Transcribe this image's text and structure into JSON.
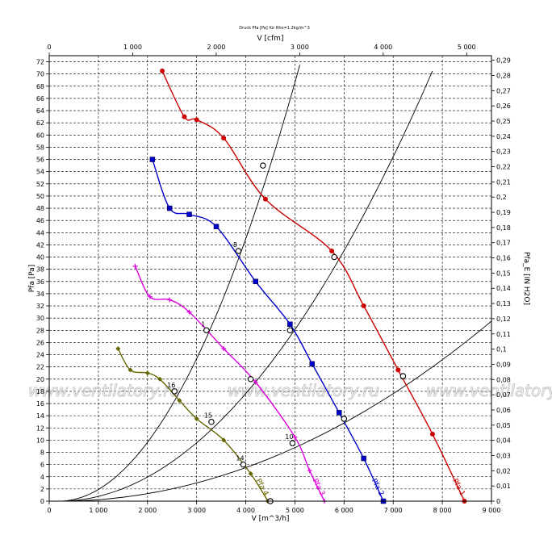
{
  "chart_data": {
    "type": "line",
    "title": "Druck Pfa [Pa] für Rho=1.2kg/m^3",
    "xlabel": "V [m^3/h]",
    "ylabel": "Pfa [Pa]",
    "x2label": "V [cfm]",
    "y2label": "Pfa_E [IN H2O]",
    "xlim": [
      0,
      9000
    ],
    "ylim": [
      0,
      73
    ],
    "x2lim": [
      0,
      5297
    ],
    "y2lim": [
      0,
      0.293
    ],
    "grid": true,
    "x_ticks": [
      "0",
      "1 000",
      "2 000",
      "3 000",
      "4 000",
      "5 000",
      "6 000",
      "7 000",
      "8 000",
      "9 000"
    ],
    "x2_ticks": [
      "0",
      "1 000",
      "2 000",
      "3 000",
      "4 000",
      "5 000"
    ],
    "y_ticks": [
      "0",
      "2",
      "4",
      "6",
      "8",
      "10",
      "12",
      "14",
      "16",
      "18",
      "20",
      "22",
      "24",
      "26",
      "28",
      "30",
      "32",
      "34",
      "36",
      "38",
      "40",
      "42",
      "44",
      "46",
      "48",
      "50",
      "52",
      "54",
      "56",
      "58",
      "60",
      "62",
      "64",
      "66",
      "68",
      "70",
      "72"
    ],
    "y2_ticks": [
      "0",
      "0,01",
      "0,02",
      "0,03",
      "0,04",
      "0,05",
      "0,06",
      "0,07",
      "0,08",
      "0,09",
      "0,1",
      "0,11",
      "0,12",
      "0,13",
      "0,14",
      "0,15",
      "0,16",
      "0,17",
      "0,18",
      "0,19",
      "0,2",
      "0,21",
      "0,22",
      "0,23",
      "0,24",
      "0,25",
      "0,26",
      "0,27",
      "0,28",
      "0,29"
    ],
    "series": [
      {
        "name": "Pfa 1",
        "color": "#cc0000",
        "marker": "circle",
        "points": [
          [
            2300,
            70.5
          ],
          [
            2750,
            63
          ],
          [
            3000,
            62.5
          ],
          [
            3550,
            59.5
          ],
          [
            4400,
            49.5
          ],
          [
            5750,
            41
          ],
          [
            6400,
            32
          ],
          [
            7100,
            21.5
          ],
          [
            7800,
            11
          ],
          [
            8450,
            0
          ]
        ]
      },
      {
        "name": "Pfa 2",
        "color": "#0000cc",
        "marker": "square",
        "points": [
          [
            2100,
            56
          ],
          [
            2450,
            48
          ],
          [
            2850,
            47
          ],
          [
            3400,
            45
          ],
          [
            4200,
            36
          ],
          [
            4900,
            29
          ],
          [
            5350,
            22.5
          ],
          [
            5900,
            14.5
          ],
          [
            6400,
            7
          ],
          [
            6800,
            0
          ]
        ]
      },
      {
        "name": "Pfa 3",
        "color": "#dd00dd",
        "marker": "plus",
        "points": [
          [
            1750,
            38.5
          ],
          [
            2050,
            33.5
          ],
          [
            2450,
            33
          ],
          [
            2850,
            31
          ],
          [
            3550,
            25
          ],
          [
            4200,
            19.5
          ],
          [
            5000,
            10.5
          ],
          [
            5300,
            5
          ],
          [
            5600,
            0
          ]
        ]
      },
      {
        "name": "Pfa 4",
        "color": "#666600",
        "marker": "diamond",
        "points": [
          [
            1400,
            25
          ],
          [
            1650,
            21.5
          ],
          [
            2000,
            21
          ],
          [
            2250,
            20
          ],
          [
            2650,
            16.5
          ],
          [
            3000,
            13.5
          ],
          [
            3550,
            10
          ],
          [
            4100,
            4.5
          ],
          [
            4450,
            0
          ]
        ]
      }
    ],
    "system_curves": [
      {
        "label": "",
        "points": [
          [
            200,
            0
          ],
          [
            5100,
            71.5
          ]
        ]
      },
      {
        "label": "",
        "points": [
          [
            200,
            0
          ],
          [
            7800,
            70.5
          ]
        ]
      },
      {
        "label": "",
        "points": [
          [
            200,
            0
          ],
          [
            9000,
            29.5
          ]
        ]
      }
    ],
    "operating_points": [
      {
        "label": "",
        "x": 4350,
        "y": 55
      },
      {
        "label": "",
        "x": 5800,
        "y": 40
      },
      {
        "label": "",
        "x": 7200,
        "y": 20.5
      },
      {
        "label": "8",
        "x": 3850,
        "y": 41
      },
      {
        "label": "",
        "x": 4900,
        "y": 28
      },
      {
        "label": "",
        "x": 6000,
        "y": 13.5
      },
      {
        "label": "1",
        "x": 3200,
        "y": 28
      },
      {
        "label": "",
        "x": 4100,
        "y": 20
      },
      {
        "label": "10",
        "x": 4950,
        "y": 9.5
      },
      {
        "label": "16",
        "x": 2550,
        "y": 18
      },
      {
        "label": "15",
        "x": 3300,
        "y": 13
      },
      {
        "label": "14",
        "x": 3950,
        "y": 6
      },
      {
        "label": "",
        "x": 4500,
        "y": 0
      }
    ],
    "curve_labels": [
      "Pfa 1",
      "Pfa 2",
      "Pfa 3",
      "Pfa 4"
    ],
    "watermark": "www.ventilatory.ru"
  }
}
